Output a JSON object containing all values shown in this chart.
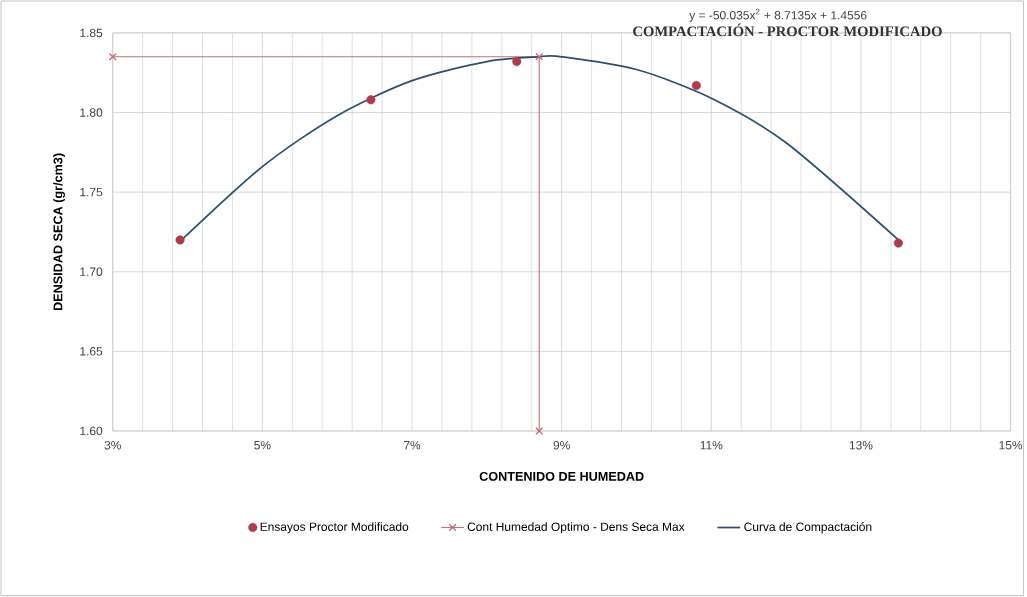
{
  "chart_data": {
    "type": "line",
    "title": "COMPACTACIÓN - PROCTOR MODIFICADO",
    "annotations": [
      "y = -50.035x$^{2}$ + 8.7135x + 1.4556"
    ],
    "xlabel": "CONTENIDO DE HUMEDAD",
    "ylabel": "DENSIDAD SECA (gr/cm3)",
    "series": [
      {
        "name": "Ensayos Proctor Modificado",
        "type": "scatter",
        "marker": "circle",
        "color": "#b03a48",
        "x": [
          3.9,
          6.45,
          8.4,
          10.8,
          13.5
        ],
        "values": [
          1.72,
          1.808,
          1.832,
          1.817,
          1.718
        ]
      },
      {
        "name": "Cont Humedad Optimo - Dens Seca Max",
        "marker": "cross",
        "color": "#c0707a",
        "x": [
          3,
          8.7,
          8.7
        ],
        "values": [
          1.835,
          1.835,
          1.6
        ]
      },
      {
        "name": "Curva de Compactación",
        "marker": "none",
        "color": "#2e4f73",
        "x": [
          3.9,
          5,
          6,
          7,
          8,
          8.7,
          9,
          10,
          11,
          12,
          13.5
        ],
        "values": [
          1.719,
          1.766,
          1.798,
          1.82,
          1.832,
          1.835,
          1.835,
          1.827,
          1.809,
          1.781,
          1.72
        ]
      }
    ],
    "xlim": [
      3,
      15
    ],
    "xticks": [
      {
        "value": 3,
        "label": "3%"
      },
      {
        "value": 5,
        "label": "5%"
      },
      {
        "value": 7,
        "label": "7%"
      },
      {
        "value": 9,
        "label": "9%"
      },
      {
        "value": 11,
        "label": "11%"
      },
      {
        "value": 13,
        "label": "13%"
      },
      {
        "value": 15,
        "label": "15%"
      }
    ],
    "ylim": [
      1.6,
      1.85
    ],
    "yticks": [
      {
        "value": 1.6,
        "label": "1.60"
      },
      {
        "value": 1.65,
        "label": "1.65"
      },
      {
        "value": 1.7,
        "label": "1.70"
      },
      {
        "value": 1.75,
        "label": "1.75"
      },
      {
        "value": 1.8,
        "label": "1.80"
      },
      {
        "value": 1.85,
        "label": "1.85"
      }
    ],
    "grid": true,
    "legend": "bottom"
  }
}
